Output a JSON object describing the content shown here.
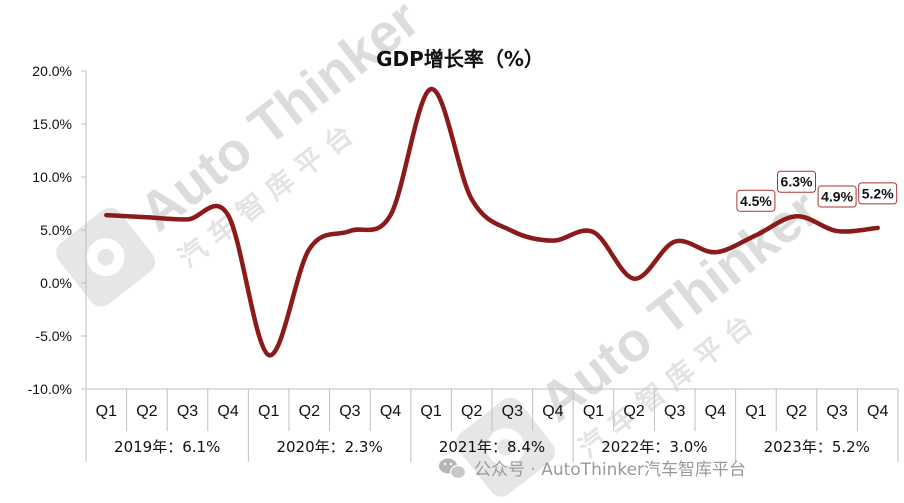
{
  "chart_data": {
    "type": "line",
    "title": "GDP增长率（%）",
    "groups": [
      {
        "label": "2019年：6.1%",
        "quarters": [
          "Q1",
          "Q2",
          "Q3",
          "Q4"
        ]
      },
      {
        "label": "2020年：2.3%",
        "quarters": [
          "Q1",
          "Q2",
          "Q3",
          "Q4"
        ]
      },
      {
        "label": "2021年：8.4%",
        "quarters": [
          "Q1",
          "Q2",
          "Q3",
          "Q4"
        ]
      },
      {
        "label": "2022年：3.0%",
        "quarters": [
          "Q1",
          "Q2",
          "Q3",
          "Q4"
        ]
      },
      {
        "label": "2023年：5.2%",
        "quarters": [
          "Q1",
          "Q2",
          "Q3",
          "Q4"
        ]
      }
    ],
    "values": [
      6.4,
      6.2,
      6.0,
      6.4,
      -6.8,
      3.2,
      4.9,
      6.4,
      18.3,
      7.9,
      4.9,
      4.0,
      4.8,
      0.4,
      3.9,
      2.9,
      4.5,
      6.3,
      4.9,
      5.2
    ],
    "data_labels": [
      {
        "index": 16,
        "text": "4.5%"
      },
      {
        "index": 17,
        "text": "6.3%"
      },
      {
        "index": 18,
        "text": "4.9%"
      },
      {
        "index": 19,
        "text": "5.2%"
      }
    ],
    "y_ticks": [
      "20.0%",
      "15.0%",
      "10.0%",
      "5.0%",
      "0.0%",
      "-5.0%",
      "-10.0%"
    ],
    "ylim": [
      -10,
      20
    ],
    "line_color": "#8b1a1a",
    "grid": false
  },
  "watermark": {
    "text": "Auto Thinker",
    "sub": "汽 车 智 库 平 台"
  },
  "footer": {
    "text": "公众号 · AutoThinker汽车智库平台"
  }
}
